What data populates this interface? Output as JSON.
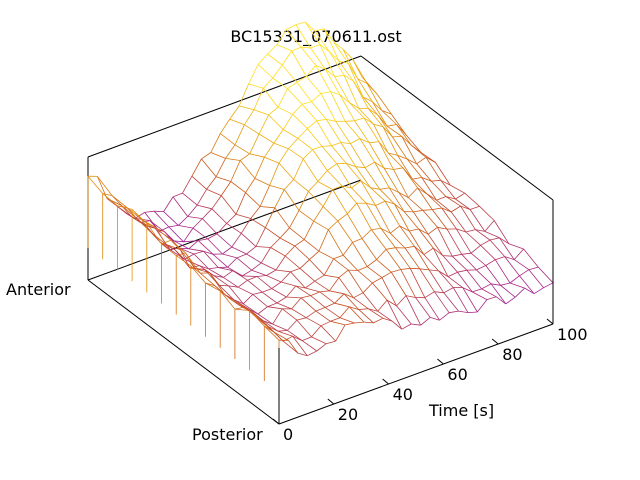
{
  "chart_data": {
    "type": "surface-3d",
    "title": "BC15331_070611.ost",
    "xlabel": "Time [s]",
    "xlim": [
      0,
      100
    ],
    "xticks": [
      "0",
      "20",
      "40",
      "60",
      "80",
      "100"
    ],
    "depth_labels": {
      "near": "Posterior",
      "far": "Anterior"
    },
    "grid": false,
    "colormap": [
      "#5a00c8",
      "#a01aa0",
      "#c8501e",
      "#e8a00a",
      "#ffe020"
    ],
    "surface": {
      "description_rows": 14,
      "time_samples": 30
    }
  }
}
